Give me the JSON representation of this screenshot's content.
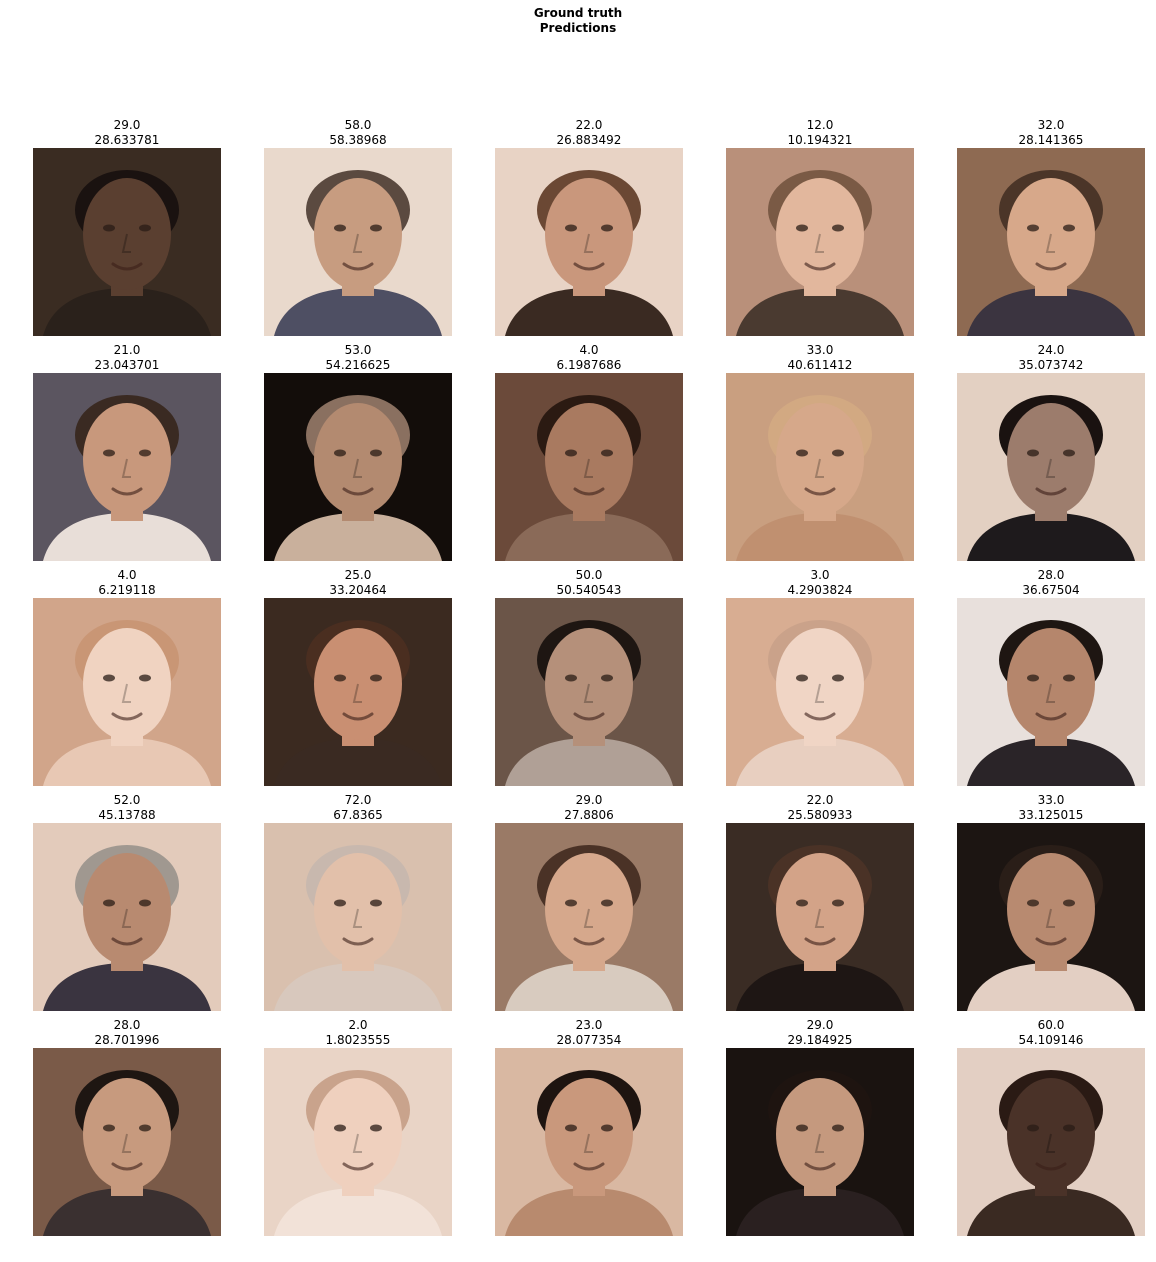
{
  "figure": {
    "title_line1": "Ground truth",
    "title_line2": "Predictions"
  },
  "panels": [
    {
      "truth": "29.0",
      "pred": "28.633781",
      "bg": "#3a2c22",
      "skin": "#5a3f30",
      "hair": "#1a1210",
      "shirt": "#2a211b"
    },
    {
      "truth": "58.0",
      "pred": "58.38968",
      "bg": "#e9d9cc",
      "skin": "#c79c80",
      "hair": "#5b4a40",
      "shirt": "#4e4f63"
    },
    {
      "truth": "22.0",
      "pred": "26.883492",
      "bg": "#e8d3c5",
      "skin": "#c9977c",
      "hair": "#6b4834",
      "shirt": "#3a2a22"
    },
    {
      "truth": "12.0",
      "pred": "10.194321",
      "bg": "#b9907a",
      "skin": "#e2b79d",
      "hair": "#7a5a45",
      "shirt": "#4a3a30"
    },
    {
      "truth": "32.0",
      "pred": "28.141365",
      "bg": "#8e6a52",
      "skin": "#d7a88a",
      "hair": "#4b3528",
      "shirt": "#3b3440"
    },
    {
      "truth": "21.0",
      "pred": "23.043701",
      "bg": "#5b5560",
      "skin": "#c8987c",
      "hair": "#3a2a22",
      "shirt": "#e8ded8"
    },
    {
      "truth": "53.0",
      "pred": "54.216625",
      "bg": "#130d0a",
      "skin": "#b38a70",
      "hair": "#8a7060",
      "shirt": "#c9b09c"
    },
    {
      "truth": "4.0",
      "pred": "6.1987686",
      "bg": "#6b4a3a",
      "skin": "#a97a60",
      "hair": "#2b1a12",
      "shirt": "#8a6a58"
    },
    {
      "truth": "33.0",
      "pred": "40.611412",
      "bg": "#c99f80",
      "skin": "#d6a88a",
      "hair": "#d2a982",
      "shirt": "#c09070"
    },
    {
      "truth": "24.0",
      "pred": "35.073742",
      "bg": "#e3d0c2",
      "skin": "#9c7c6c",
      "hair": "#1a1210",
      "shirt": "#1e1a1c"
    },
    {
      "truth": "4.0",
      "pred": "6.219118",
      "bg": "#d1a58a",
      "skin": "#f0d3c1",
      "hair": "#c99675",
      "shirt": "#e8c8b4"
    },
    {
      "truth": "25.0",
      "pred": "33.20464",
      "bg": "#3b2a20",
      "skin": "#c98f72",
      "hair": "#4a2e20",
      "shirt": "#3a2a22"
    },
    {
      "truth": "50.0",
      "pred": "50.540543",
      "bg": "#6b5548",
      "skin": "#b5907a",
      "hair": "#1e1612",
      "shirt": "#b0a096"
    },
    {
      "truth": "3.0",
      "pred": "4.2903824",
      "bg": "#d8ad92",
      "skin": "#f0d5c5",
      "hair": "#caa28a",
      "shirt": "#e8cfc0"
    },
    {
      "truth": "28.0",
      "pred": "36.67504",
      "bg": "#e8e0dc",
      "skin": "#b5866c",
      "hair": "#1e1612",
      "shirt": "#2a2428"
    },
    {
      "truth": "52.0",
      "pred": "45.13788",
      "bg": "#e3cbbb",
      "skin": "#b88a70",
      "hair": "#a09890",
      "shirt": "#3a3440"
    },
    {
      "truth": "72.0",
      "pred": "67.8365",
      "bg": "#d9c0ae",
      "skin": "#e2c0aa",
      "hair": "#c8b8ae",
      "shirt": "#d8c8bd"
    },
    {
      "truth": "29.0",
      "pred": "27.8806",
      "bg": "#9a7a66",
      "skin": "#d6a88c",
      "hair": "#4a3226",
      "shirt": "#d8cbbf"
    },
    {
      "truth": "22.0",
      "pred": "25.580933",
      "bg": "#3a2c24",
      "skin": "#d3a388",
      "hair": "#4a3226",
      "shirt": "#1e1614"
    },
    {
      "truth": "33.0",
      "pred": "33.125015",
      "bg": "#1c1512",
      "skin": "#b88a70",
      "hair": "#2a1e18",
      "shirt": "#e3cfc3"
    },
    {
      "truth": "28.0",
      "pred": "28.701996",
      "bg": "#7a5a48",
      "skin": "#c79a7e",
      "hair": "#1e1612",
      "shirt": "#3a3030"
    },
    {
      "truth": "2.0",
      "pred": "1.8023555",
      "bg": "#e9d4c6",
      "skin": "#efd0be",
      "hair": "#c9a38c",
      "shirt": "#f2e2d8"
    },
    {
      "truth": "23.0",
      "pred": "28.077354",
      "bg": "#d9b8a2",
      "skin": "#c9987c",
      "hair": "#1e1410",
      "shirt": "#b88a6e"
    },
    {
      "truth": "29.0",
      "pred": "29.184925",
      "bg": "#1a1310",
      "skin": "#c5997e",
      "hair": "#1e1410",
      "shirt": "#2a2020"
    },
    {
      "truth": "60.0",
      "pred": "54.109146",
      "bg": "#e3cfc3",
      "skin": "#4a3228",
      "hair": "#2a1a14",
      "shirt": "#3a2a22"
    }
  ]
}
